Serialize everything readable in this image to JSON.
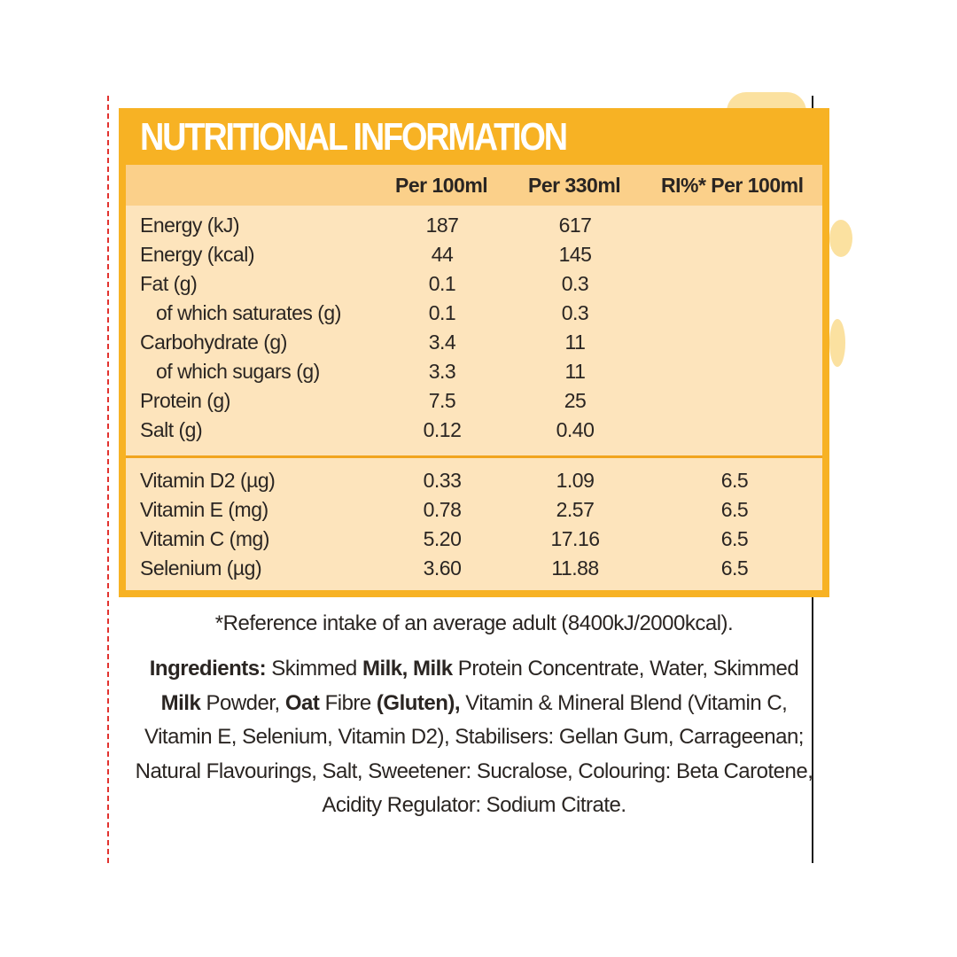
{
  "title": "NUTRITIONAL INFORMATION",
  "columns": [
    "Per 100ml",
    "Per 330ml",
    "RI%* Per 100ml"
  ],
  "nutrients": [
    {
      "label": "Energy (kJ)",
      "per100": "187",
      "per330": "617",
      "ri": ""
    },
    {
      "label": "Energy (kcal)",
      "per100": "44",
      "per330": "145",
      "ri": ""
    },
    {
      "label": "Fat (g)",
      "per100": "0.1",
      "per330": "0.3",
      "ri": ""
    },
    {
      "label": "of which saturates (g)",
      "per100": "0.1",
      "per330": "0.3",
      "ri": ""
    },
    {
      "label": "Carbohydrate (g)",
      "per100": "3.4",
      "per330": "11",
      "ri": ""
    },
    {
      "label": "of which sugars (g)",
      "per100": "3.3",
      "per330": "11",
      "ri": ""
    },
    {
      "label": "Protein (g)",
      "per100": "7.5",
      "per330": "25",
      "ri": ""
    },
    {
      "label": "Salt (g)",
      "per100": "0.12",
      "per330": "0.40",
      "ri": ""
    }
  ],
  "vitamins": [
    {
      "label": "Vitamin D2 (µg)",
      "per100": "0.33",
      "per330": "1.09",
      "ri": "6.5"
    },
    {
      "label": "Vitamin E (mg)",
      "per100": "0.78",
      "per330": "2.57",
      "ri": "6.5"
    },
    {
      "label": "Vitamin C (mg)",
      "per100": "5.20",
      "per330": "17.16",
      "ri": "6.5"
    },
    {
      "label": "Selenium (µg)",
      "per100": "3.60",
      "per330": "11.88",
      "ri": "6.5"
    }
  ],
  "reference_note": "*Reference intake of an average adult (8400kJ/2000kcal).",
  "ingredients": {
    "label": "Ingredients:",
    "parts": [
      {
        "t": " Skimmed ",
        "b": false
      },
      {
        "t": "Milk, Milk",
        "b": true
      },
      {
        "t": " Protein Concentrate, Water, Skimmed ",
        "b": false
      },
      {
        "t": "Milk",
        "b": true
      },
      {
        "t": " Powder, ",
        "b": false
      },
      {
        "t": "Oat",
        "b": true
      },
      {
        "t": " Fibre ",
        "b": false
      },
      {
        "t": "(Gluten),",
        "b": true
      },
      {
        "t": " Vitamin & Mineral Blend (Vitamin C, Vitamin E, Selenium, Vitamin D2), Stabilisers: Gellan Gum, Carrageenan; Natural Flavourings, Salt, Sweetener: Sucralose, Colouring: Beta Carotene, Acidity Regulator: Sodium Citrate.",
        "b": false
      }
    ]
  },
  "colors": {
    "panel_orange": "#f7b224",
    "header_band": "#fbd08a",
    "table_body": "#fde4bc",
    "cut_line_red": "#e2332f",
    "text": "#2a2522"
  }
}
